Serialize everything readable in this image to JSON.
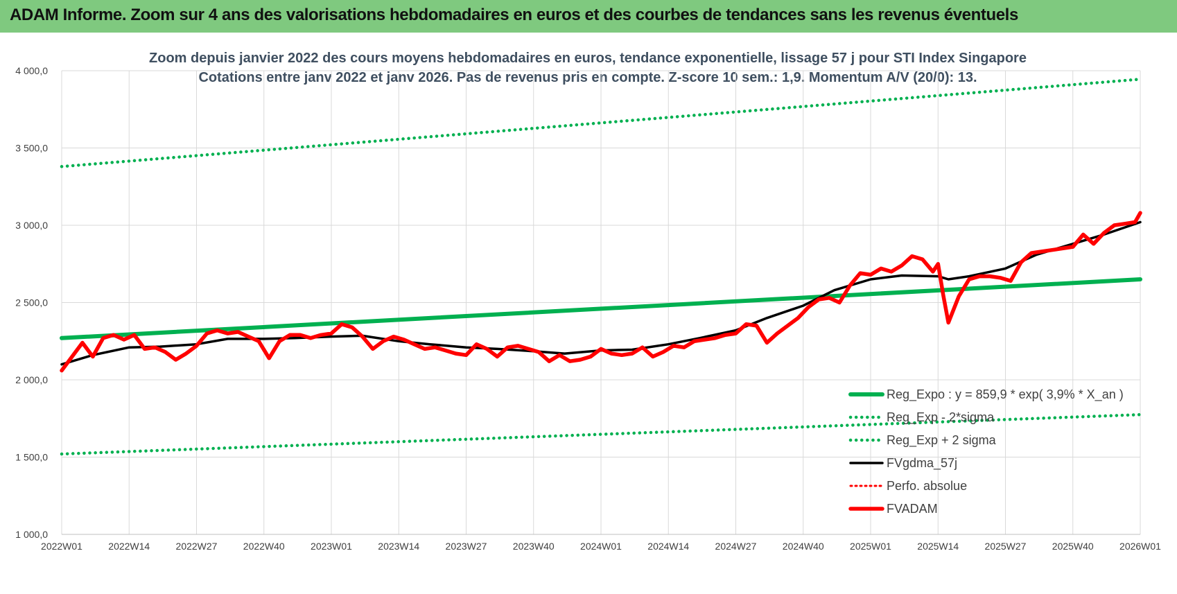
{
  "banner": {
    "title": "ADAM Informe. Zoom sur 4 ans des valorisations hebdomadaires en euros et des courbes de tendances sans les revenus éventuels"
  },
  "colors": {
    "banner_background": "#7fc97f",
    "reg_expo": "#00b050",
    "fvgdma": "#000000",
    "fvadam": "#ff0000",
    "perfo": "#ff0000"
  },
  "chart_data": {
    "type": "line",
    "title": "Zoom depuis janvier 2022 des cours moyens hebdomadaires en euros, tendance exponentielle, lissage 57 j pour STI Index Singapore",
    "subtitle": "Cotations entre janv 2022 et janv 2026. Pas de revenus pris en compte. Z-score 10 sem.: 1,9. Momentum A/V (20/0):  13.",
    "xlabel": "",
    "ylabel": "",
    "ylim": [
      1000,
      4000
    ],
    "y_ticks": [
      1000,
      1500,
      2000,
      2500,
      3000,
      3500,
      4000
    ],
    "y_tick_labels": [
      "1 000,0",
      "1 500,0",
      "2 000,0",
      "2 500,0",
      "3 000,0",
      "3 500,0",
      "4 000,0"
    ],
    "x_ticks": [
      "2022W01",
      "2022W14",
      "2022W27",
      "2022W40",
      "2023W01",
      "2023W14",
      "2023W27",
      "2023W40",
      "2024W01",
      "2024W14",
      "2024W27",
      "2024W40",
      "2025W01",
      "2025W14",
      "2025W27",
      "2025W40",
      "2026W01"
    ],
    "grid": true,
    "legend_position": "bottom-right",
    "series": [
      {
        "name": "Reg_Expo : y = 859,9 * exp( 3,9% *  X_an )",
        "style": "solid",
        "x": [
          "2022W01",
          "2026W01"
        ],
        "values": [
          2270,
          2650
        ]
      },
      {
        "name": "Reg_Exp - 2*sigma",
        "style": "dotted",
        "x": [
          "2022W01",
          "2026W01"
        ],
        "values": [
          1520,
          1775
        ]
      },
      {
        "name": "Reg_Exp + 2 sigma",
        "style": "dotted",
        "x": [
          "2022W01",
          "2026W01"
        ],
        "values": [
          3380,
          3945
        ]
      },
      {
        "name": "FVgdma_57j",
        "style": "solid",
        "x": [
          "2022W01",
          "2022W07",
          "2022W14",
          "2022W20",
          "2022W27",
          "2022W33",
          "2022W40",
          "2022W46",
          "2023W01",
          "2023W07",
          "2023W14",
          "2023W20",
          "2023W27",
          "2023W33",
          "2023W40",
          "2023W46",
          "2024W01",
          "2024W07",
          "2024W14",
          "2024W20",
          "2024W27",
          "2024W33",
          "2024W40",
          "2024W46",
          "2025W01",
          "2025W07",
          "2025W14",
          "2025W16",
          "2025W20",
          "2025W27",
          "2025W33",
          "2025W40",
          "2025W46",
          "2026W01"
        ],
        "values": [
          2100,
          2160,
          2210,
          2215,
          2230,
          2265,
          2265,
          2270,
          2280,
          2285,
          2250,
          2230,
          2210,
          2200,
          2185,
          2170,
          2190,
          2195,
          2230,
          2270,
          2320,
          2400,
          2480,
          2580,
          2650,
          2675,
          2670,
          2650,
          2670,
          2720,
          2810,
          2880,
          2940,
          3020
        ]
      },
      {
        "name": "Perfo. absolue",
        "style": "dotted",
        "x": [],
        "values": []
      },
      {
        "name": "FVADAM",
        "style": "solid-thick",
        "x": [
          "2022W01",
          "2022W03",
          "2022W05",
          "2022W07",
          "2022W09",
          "2022W11",
          "2022W13",
          "2022W15",
          "2022W17",
          "2022W19",
          "2022W21",
          "2022W23",
          "2022W25",
          "2022W27",
          "2022W29",
          "2022W31",
          "2022W33",
          "2022W35",
          "2022W37",
          "2022W39",
          "2022W41",
          "2022W43",
          "2022W45",
          "2022W47",
          "2022W49",
          "2022W51",
          "2023W01",
          "2023W03",
          "2023W05",
          "2023W07",
          "2023W09",
          "2023W11",
          "2023W13",
          "2023W15",
          "2023W17",
          "2023W19",
          "2023W21",
          "2023W23",
          "2023W25",
          "2023W27",
          "2023W29",
          "2023W31",
          "2023W33",
          "2023W35",
          "2023W37",
          "2023W39",
          "2023W41",
          "2023W43",
          "2023W45",
          "2023W47",
          "2023W49",
          "2023W51",
          "2024W01",
          "2024W03",
          "2024W05",
          "2024W07",
          "2024W09",
          "2024W11",
          "2024W13",
          "2024W15",
          "2024W17",
          "2024W19",
          "2024W21",
          "2024W23",
          "2024W25",
          "2024W27",
          "2024W29",
          "2024W31",
          "2024W33",
          "2024W35",
          "2024W37",
          "2024W39",
          "2024W41",
          "2024W43",
          "2024W45",
          "2024W47",
          "2024W49",
          "2024W51",
          "2025W01",
          "2025W03",
          "2025W05",
          "2025W07",
          "2025W09",
          "2025W11",
          "2025W13",
          "2025W14",
          "2025W15",
          "2025W16",
          "2025W18",
          "2025W20",
          "2025W22",
          "2025W24",
          "2025W26",
          "2025W28",
          "2025W30",
          "2025W32",
          "2025W34",
          "2025W36",
          "2025W38",
          "2025W40",
          "2025W42",
          "2025W44",
          "2025W46",
          "2025W48",
          "2025W50",
          "2025W52",
          "2026W01"
        ],
        "values": [
          2060,
          2150,
          2240,
          2150,
          2270,
          2290,
          2260,
          2290,
          2200,
          2210,
          2180,
          2130,
          2170,
          2220,
          2300,
          2320,
          2300,
          2310,
          2280,
          2250,
          2140,
          2250,
          2290,
          2290,
          2270,
          2290,
          2300,
          2360,
          2340,
          2280,
          2200,
          2250,
          2280,
          2260,
          2230,
          2200,
          2210,
          2190,
          2170,
          2160,
          2230,
          2200,
          2150,
          2210,
          2220,
          2200,
          2180,
          2120,
          2160,
          2120,
          2130,
          2150,
          2200,
          2170,
          2160,
          2170,
          2210,
          2150,
          2180,
          2220,
          2210,
          2250,
          2260,
          2270,
          2290,
          2300,
          2360,
          2350,
          2240,
          2300,
          2350,
          2400,
          2470,
          2520,
          2530,
          2500,
          2610,
          2690,
          2680,
          2720,
          2700,
          2740,
          2800,
          2780,
          2700,
          2750,
          2550,
          2370,
          2540,
          2650,
          2670,
          2670,
          2660,
          2640,
          2760,
          2820,
          2830,
          2840,
          2850,
          2860,
          2940,
          2880,
          2950,
          3000,
          3010,
          3020,
          3080
        ]
      }
    ]
  }
}
